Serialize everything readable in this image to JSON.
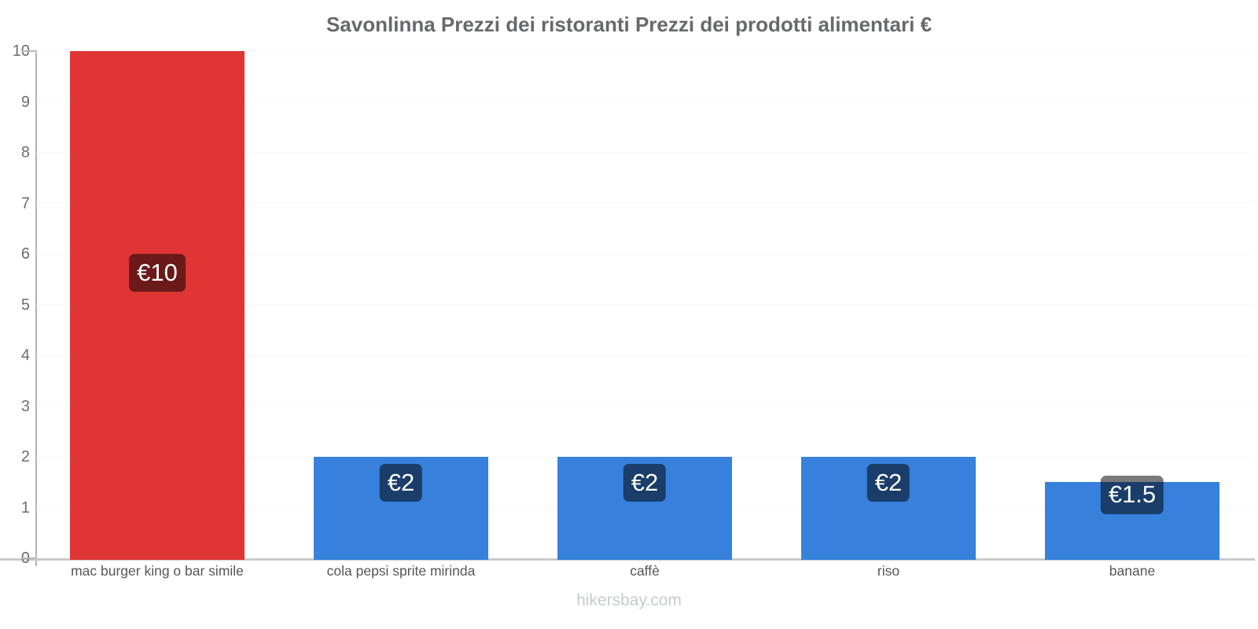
{
  "title": "Savonlinna Prezzi dei ristoranti Prezzi dei prodotti alimentari €",
  "footer": "hikersbay.com",
  "colors": {
    "red_bar": "#df3535",
    "blue_bar": "#3781dd",
    "value_label_bg": "rgba(0,0,0,0.52)",
    "value_label_text": "#ffffff",
    "title_text": "#67696b",
    "axis_tick_text": "#6e6e6e",
    "category_text": "#565656",
    "watermark_text": "#c6cad1",
    "baseline": "#c9c9c9",
    "axis_line": "#b3b3b3"
  },
  "chart_data": {
    "type": "bar",
    "title": "Savonlinna Prezzi dei ristoranti Prezzi dei prodotti alimentari €",
    "categories": [
      "mac burger king o bar simile",
      "cola pepsi sprite mirinda",
      "caffè",
      "riso",
      "banane"
    ],
    "values": [
      10,
      2,
      2,
      2,
      1.5
    ],
    "data_labels": [
      "€10",
      "€2",
      "€2",
      "€2",
      "€1.5"
    ],
    "series_colors": [
      "#df3535",
      "#3781dd",
      "#3781dd",
      "#3781dd",
      "#3781dd"
    ],
    "xlabel": "",
    "ylabel": "",
    "ylim": [
      0,
      10
    ],
    "ytick_step": 1,
    "ytick_labels": [
      "0",
      "1",
      "2",
      "3",
      "4",
      "5",
      "6",
      "7",
      "8",
      "9",
      "10"
    ],
    "grid": "faint horizontal",
    "legend": "none",
    "currency": "€",
    "watermark": "hikersbay.com"
  }
}
